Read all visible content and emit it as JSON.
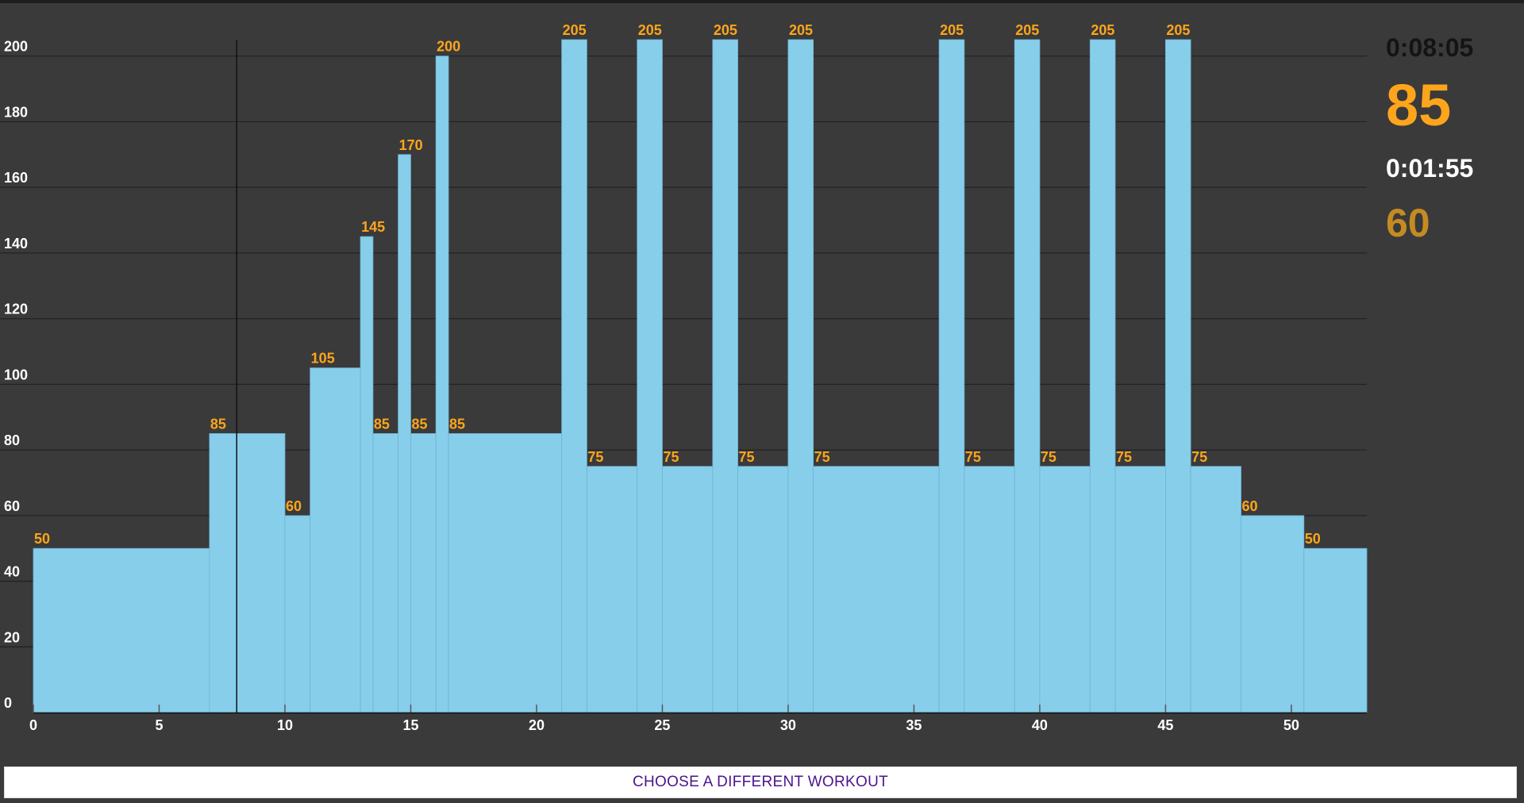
{
  "stats": {
    "elapsed_time": "0:08:05",
    "current_target": "85",
    "interval_remaining": "0:01:55",
    "next_target": "60"
  },
  "buttons": {
    "choose_workout": "CHOOSE A DIFFERENT WORKOUT"
  },
  "colors": {
    "background": "#3a3a3a",
    "bar_fill": "#87ceeb",
    "bar_label": "#ffa51b",
    "current_target": "#ffa51b",
    "next_target": "#c58b22",
    "elapsed_time": "#141414",
    "button_text": "#4a148c"
  },
  "chart_data": {
    "type": "bar",
    "title": "",
    "xlabel": "",
    "ylabel": "",
    "xlim": [
      0,
      53
    ],
    "ylim": [
      0,
      205
    ],
    "x_ticks": [
      0,
      5,
      10,
      15,
      20,
      25,
      30,
      35,
      40,
      45,
      50
    ],
    "y_ticks": [
      0,
      20,
      40,
      60,
      80,
      100,
      120,
      140,
      160,
      180,
      200
    ],
    "grid": true,
    "current_position": 8.083,
    "intervals": [
      {
        "start": 0,
        "end": 7,
        "value": 50
      },
      {
        "start": 7,
        "end": 10,
        "value": 85
      },
      {
        "start": 10,
        "end": 11,
        "value": 60
      },
      {
        "start": 11,
        "end": 13,
        "value": 105
      },
      {
        "start": 13,
        "end": 13.5,
        "value": 145
      },
      {
        "start": 13.5,
        "end": 14.5,
        "value": 85
      },
      {
        "start": 14.5,
        "end": 15,
        "value": 170
      },
      {
        "start": 15,
        "end": 16,
        "value": 85
      },
      {
        "start": 16,
        "end": 16.5,
        "value": 200
      },
      {
        "start": 16.5,
        "end": 21,
        "value": 85
      },
      {
        "start": 21,
        "end": 22,
        "value": 205
      },
      {
        "start": 22,
        "end": 24,
        "value": 75
      },
      {
        "start": 24,
        "end": 25,
        "value": 205
      },
      {
        "start": 25,
        "end": 27,
        "value": 75
      },
      {
        "start": 27,
        "end": 28,
        "value": 205
      },
      {
        "start": 28,
        "end": 30,
        "value": 75
      },
      {
        "start": 30,
        "end": 31,
        "value": 205
      },
      {
        "start": 31,
        "end": 36,
        "value": 75
      },
      {
        "start": 36,
        "end": 37,
        "value": 205
      },
      {
        "start": 37,
        "end": 39,
        "value": 75
      },
      {
        "start": 39,
        "end": 40,
        "value": 205
      },
      {
        "start": 40,
        "end": 42,
        "value": 75
      },
      {
        "start": 42,
        "end": 43,
        "value": 205
      },
      {
        "start": 43,
        "end": 45,
        "value": 75
      },
      {
        "start": 45,
        "end": 46,
        "value": 205
      },
      {
        "start": 46,
        "end": 48,
        "value": 75
      },
      {
        "start": 48,
        "end": 50.5,
        "value": 60
      },
      {
        "start": 50.5,
        "end": 53,
        "value": 50
      }
    ],
    "bar_labels": [
      {
        "x": 0,
        "value": "50"
      },
      {
        "x": 7,
        "value": "85"
      },
      {
        "x": 10,
        "value": "60"
      },
      {
        "x": 11,
        "value": "105"
      },
      {
        "x": 13,
        "value": "145"
      },
      {
        "x": 13.5,
        "value": "85"
      },
      {
        "x": 14.5,
        "value": "170"
      },
      {
        "x": 15,
        "value": "85"
      },
      {
        "x": 16,
        "value": "200"
      },
      {
        "x": 16.5,
        "value": "85"
      },
      {
        "x": 21,
        "value": "205"
      },
      {
        "x": 22,
        "value": "75"
      },
      {
        "x": 24,
        "value": "205"
      },
      {
        "x": 25,
        "value": "75"
      },
      {
        "x": 27,
        "value": "205"
      },
      {
        "x": 28,
        "value": "75"
      },
      {
        "x": 30,
        "value": "205"
      },
      {
        "x": 31,
        "value": "75"
      },
      {
        "x": 36,
        "value": "205"
      },
      {
        "x": 37,
        "value": "75"
      },
      {
        "x": 39,
        "value": "205"
      },
      {
        "x": 40,
        "value": "75"
      },
      {
        "x": 42,
        "value": "205"
      },
      {
        "x": 43,
        "value": "75"
      },
      {
        "x": 45,
        "value": "205"
      },
      {
        "x": 46,
        "value": "75"
      },
      {
        "x": 48,
        "value": "60"
      },
      {
        "x": 50.5,
        "value": "50"
      }
    ]
  }
}
